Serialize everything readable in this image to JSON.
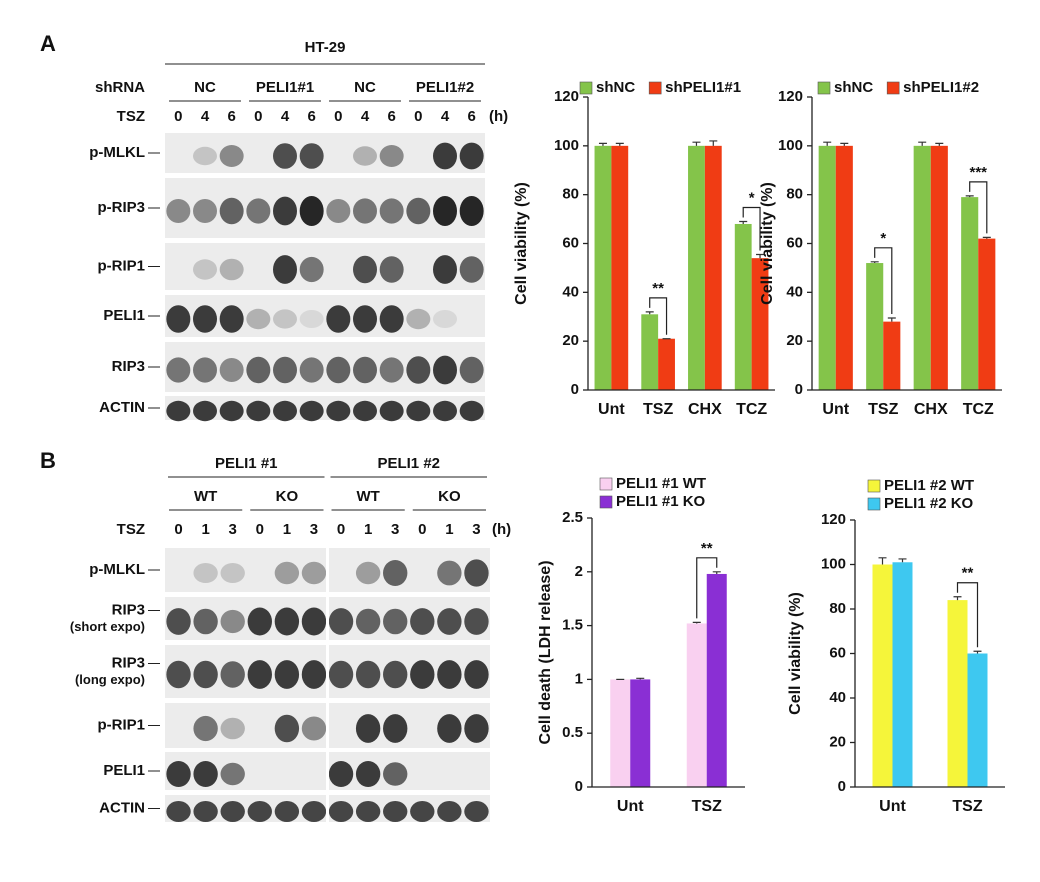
{
  "panel_labels": [
    "A",
    "B"
  ],
  "blot_a": {
    "cell_line": "HT-29",
    "row_header": "shRNA",
    "groups": [
      "NC",
      "PELI1#1",
      "NC",
      "PELI1#2"
    ],
    "time_label": "TSZ",
    "times": [
      "0",
      "4",
      "6",
      "0",
      "4",
      "6",
      "0",
      "4",
      "6",
      "0",
      "4",
      "6"
    ],
    "time_unit": "(h)",
    "rows": [
      "p-MLKL",
      "p-RIP3",
      "p-RIP1",
      "PELI1",
      "RIP3",
      "ACTIN"
    ]
  },
  "blot_b": {
    "groups": [
      "PELI1 #1",
      "PELI1 #2"
    ],
    "subgroups": [
      "WT",
      "KO",
      "WT",
      "KO"
    ],
    "time_label": "TSZ",
    "times": [
      "0",
      "1",
      "3",
      "0",
      "1",
      "3",
      "0",
      "1",
      "3",
      "0",
      "1",
      "3"
    ],
    "time_unit": "(h)",
    "rows": [
      {
        "label": "p-MLKL"
      },
      {
        "label": "RIP3",
        "note": "(short expo)"
      },
      {
        "label": "RIP3",
        "note": "(long expo)"
      },
      {
        "label": "p-RIP1"
      },
      {
        "label": "PELI1"
      },
      {
        "label": "ACTIN"
      }
    ]
  },
  "chart_data": [
    {
      "type": "bar",
      "y_label": "Cell viability (%)",
      "categories": [
        "Unt",
        "TSZ",
        "CHX",
        "TCZ"
      ],
      "series": [
        {
          "name": "shNC",
          "color": "#84c44a",
          "values": [
            100,
            31,
            100,
            68
          ],
          "errors": [
            1,
            1,
            1.5,
            1
          ]
        },
        {
          "name": "shPELI1#1",
          "color": "#f03c14",
          "values": [
            100,
            21,
            100,
            54
          ],
          "errors": [
            1,
            0,
            2,
            1.5
          ]
        }
      ],
      "ylim": [
        0,
        120
      ],
      "yticks": [
        0,
        20,
        40,
        60,
        80,
        100,
        120
      ],
      "legend": "top",
      "annotations": [
        {
          "text": "**",
          "category": "TSZ"
        },
        {
          "text": "*",
          "category": "TCZ"
        }
      ]
    },
    {
      "type": "bar",
      "y_label": "Cell viability (%)",
      "categories": [
        "Unt",
        "TSZ",
        "CHX",
        "TCZ"
      ],
      "series": [
        {
          "name": "shNC",
          "color": "#84c44a",
          "values": [
            100,
            52,
            100,
            79
          ],
          "errors": [
            1.5,
            0.5,
            1.5,
            0.5
          ]
        },
        {
          "name": "shPELI1#2",
          "color": "#f03c14",
          "values": [
            100,
            28,
            100,
            62
          ],
          "errors": [
            1,
            1.5,
            1,
            0.5
          ]
        }
      ],
      "ylim": [
        0,
        120
      ],
      "yticks": [
        0,
        20,
        40,
        60,
        80,
        100,
        120
      ],
      "legend": "top",
      "annotations": [
        {
          "text": "*",
          "category": "TSZ"
        },
        {
          "text": "***",
          "category": "TCZ"
        }
      ]
    },
    {
      "type": "bar",
      "y_label": "Cell death (LDH release)",
      "categories": [
        "Unt",
        "TSZ"
      ],
      "series": [
        {
          "name": "PELI1 #1 WT",
          "color": "#f9d0f0",
          "values": [
            1,
            1.52
          ],
          "errors": [
            0,
            0.01
          ]
        },
        {
          "name": "PELI1 #1 KO",
          "color": "#8a2fd4",
          "values": [
            1,
            1.98
          ],
          "errors": [
            0.01,
            0.02
          ]
        }
      ],
      "ylim": [
        0,
        2.5
      ],
      "yticks": [
        0,
        0.5,
        1,
        1.5,
        2,
        2.5
      ],
      "legend": "top",
      "annotations": [
        {
          "text": "**",
          "category": "TSZ"
        }
      ]
    },
    {
      "type": "bar",
      "y_label": "Cell viability (%)",
      "categories": [
        "Unt",
        "TSZ"
      ],
      "series": [
        {
          "name": "PELI1 #2 WT",
          "color": "#f5f53a",
          "values": [
            100,
            84
          ],
          "errors": [
            3,
            1.5
          ]
        },
        {
          "name": "PELI1 #2 KO",
          "color": "#3ec8f0",
          "values": [
            101,
            60
          ],
          "errors": [
            1.5,
            1
          ]
        }
      ],
      "ylim": [
        0,
        120
      ],
      "yticks": [
        0,
        20,
        40,
        60,
        80,
        100,
        120
      ],
      "legend": "top",
      "annotations": [
        {
          "text": "**",
          "category": "TSZ"
        }
      ]
    }
  ]
}
